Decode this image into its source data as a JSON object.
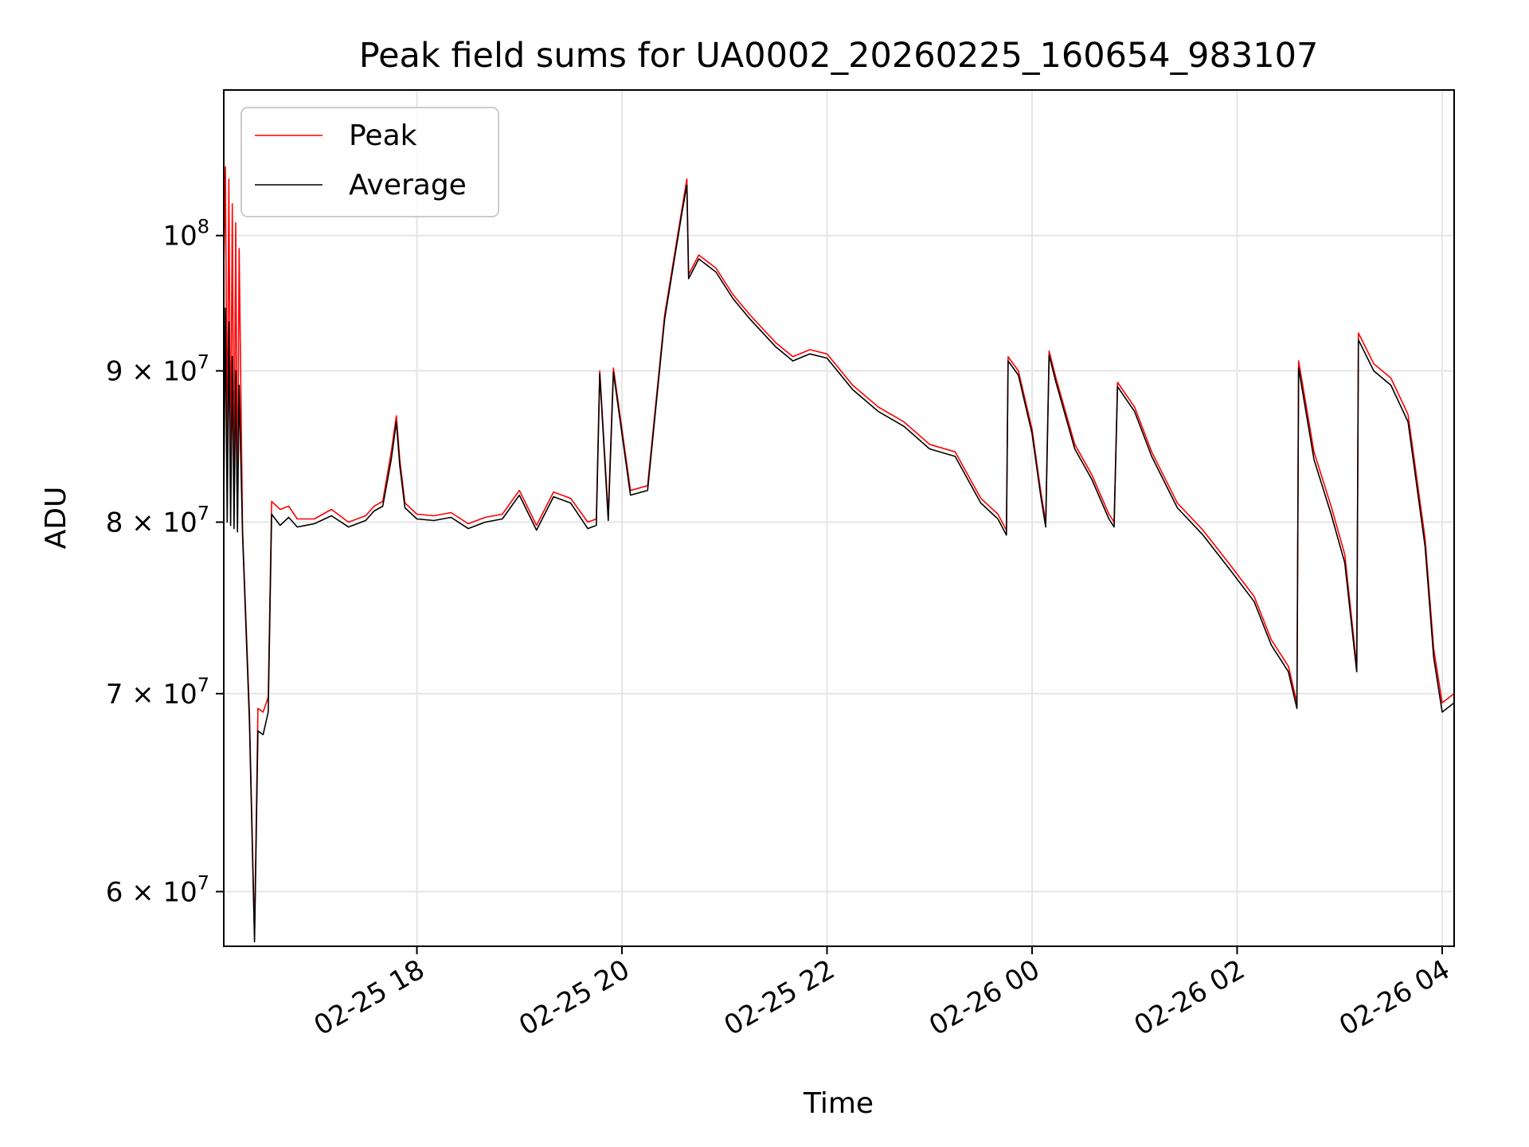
{
  "chart_data": {
    "type": "line",
    "title": "Peak field sums for UA0002_20260225_160654_983107",
    "xlabel": "Time",
    "ylabel": "ADU",
    "yscale": "log",
    "grid": true,
    "legend_position": "top-left",
    "xlim": [
      "2026-02-25 16:07",
      "2026-02-26 04:07"
    ],
    "ylim": [
      57500000,
      112000000
    ],
    "x_ticks": [
      {
        "value": "2026-02-25 18:00",
        "label": "02-25 18"
      },
      {
        "value": "2026-02-25 20:00",
        "label": "02-25 20"
      },
      {
        "value": "2026-02-25 22:00",
        "label": "02-25 22"
      },
      {
        "value": "2026-02-26 00:00",
        "label": "02-26 00"
      },
      {
        "value": "2026-02-26 02:00",
        "label": "02-26 02"
      },
      {
        "value": "2026-02-26 04:00",
        "label": "02-26 04"
      }
    ],
    "y_ticks": [
      {
        "value": 60000000,
        "mantissa": "6",
        "times": "×",
        "base": "10",
        "exp": "7"
      },
      {
        "value": 70000000,
        "mantissa": "7",
        "times": "×",
        "base": "10",
        "exp": "7"
      },
      {
        "value": 80000000,
        "mantissa": "8",
        "times": "×",
        "base": "10",
        "exp": "7"
      },
      {
        "value": 90000000,
        "mantissa": "9",
        "times": "×",
        "base": "10",
        "exp": "7"
      },
      {
        "value": 100000000,
        "mantissa": "",
        "times": "",
        "base": "10",
        "exp": "8"
      }
    ],
    "series": [
      {
        "name": "Peak",
        "color": "#ff0000",
        "points": [
          [
            "2026-02-25 16:07",
            97500000
          ],
          [
            "2026-02-25 16:08",
            105500000
          ],
          [
            "2026-02-25 16:09",
            84000000
          ],
          [
            "2026-02-25 16:10",
            104500000
          ],
          [
            "2026-02-25 16:11",
            83000000
          ],
          [
            "2026-02-25 16:12",
            102500000
          ],
          [
            "2026-02-25 16:13",
            81500000
          ],
          [
            "2026-02-25 16:14",
            101000000
          ],
          [
            "2026-02-25 16:15",
            80500000
          ],
          [
            "2026-02-25 16:16",
            99000000
          ],
          [
            "2026-02-25 16:18",
            79500000
          ],
          [
            "2026-02-25 16:22",
            69000000
          ],
          [
            "2026-02-25 16:25",
            58000000
          ],
          [
            "2026-02-25 16:27",
            69200000
          ],
          [
            "2026-02-25 16:30",
            69000000
          ],
          [
            "2026-02-25 16:33",
            69800000
          ],
          [
            "2026-02-25 16:35",
            81300000
          ],
          [
            "2026-02-25 16:40",
            80800000
          ],
          [
            "2026-02-25 16:45",
            81000000
          ],
          [
            "2026-02-25 16:50",
            80200000
          ],
          [
            "2026-02-25 17:00",
            80200000
          ],
          [
            "2026-02-25 17:10",
            80800000
          ],
          [
            "2026-02-25 17:20",
            80000000
          ],
          [
            "2026-02-25 17:30",
            80400000
          ],
          [
            "2026-02-25 17:35",
            81000000
          ],
          [
            "2026-02-25 17:40",
            81300000
          ],
          [
            "2026-02-25 17:45",
            84500000
          ],
          [
            "2026-02-25 17:48",
            86900000
          ],
          [
            "2026-02-25 17:50",
            84000000
          ],
          [
            "2026-02-25 17:53",
            81200000
          ],
          [
            "2026-02-25 18:00",
            80500000
          ],
          [
            "2026-02-25 18:10",
            80400000
          ],
          [
            "2026-02-25 18:20",
            80600000
          ],
          [
            "2026-02-25 18:30",
            79900000
          ],
          [
            "2026-02-25 18:40",
            80300000
          ],
          [
            "2026-02-25 18:50",
            80500000
          ],
          [
            "2026-02-25 19:00",
            82000000
          ],
          [
            "2026-02-25 19:10",
            79800000
          ],
          [
            "2026-02-25 19:20",
            81900000
          ],
          [
            "2026-02-25 19:30",
            81500000
          ],
          [
            "2026-02-25 19:40",
            80000000
          ],
          [
            "2026-02-25 19:45",
            80200000
          ],
          [
            "2026-02-25 19:47",
            90000000
          ],
          [
            "2026-02-25 19:52",
            80500000
          ],
          [
            "2026-02-25 19:55",
            90200000
          ],
          [
            "2026-02-25 20:05",
            82000000
          ],
          [
            "2026-02-25 20:15",
            82300000
          ],
          [
            "2026-02-25 20:25",
            94000000
          ],
          [
            "2026-02-25 20:35",
            102000000
          ],
          [
            "2026-02-25 20:38",
            104500000
          ],
          [
            "2026-02-25 20:39",
            97000000
          ],
          [
            "2026-02-25 20:45",
            98500000
          ],
          [
            "2026-02-25 20:55",
            97500000
          ],
          [
            "2026-02-25 21:05",
            95500000
          ],
          [
            "2026-02-25 21:15",
            94000000
          ],
          [
            "2026-02-25 21:30",
            92000000
          ],
          [
            "2026-02-25 21:40",
            91000000
          ],
          [
            "2026-02-25 21:50",
            91500000
          ],
          [
            "2026-02-25 22:00",
            91200000
          ],
          [
            "2026-02-25 22:15",
            89000000
          ],
          [
            "2026-02-25 22:30",
            87500000
          ],
          [
            "2026-02-25 22:45",
            86500000
          ],
          [
            "2026-02-25 23:00",
            85000000
          ],
          [
            "2026-02-25 23:15",
            84500000
          ],
          [
            "2026-02-25 23:30",
            81500000
          ],
          [
            "2026-02-25 23:40",
            80500000
          ],
          [
            "2026-02-25 23:45",
            79500000
          ],
          [
            "2026-02-25 23:46",
            91000000
          ],
          [
            "2026-02-25 23:52",
            90000000
          ],
          [
            "2026-02-26 00:00",
            86000000
          ],
          [
            "2026-02-26 00:05",
            82000000
          ],
          [
            "2026-02-26 00:08",
            80000000
          ],
          [
            "2026-02-26 00:10",
            91400000
          ],
          [
            "2026-02-26 00:14",
            89500000
          ],
          [
            "2026-02-26 00:25",
            85000000
          ],
          [
            "2026-02-26 00:35",
            83000000
          ],
          [
            "2026-02-26 00:45",
            80500000
          ],
          [
            "2026-02-26 00:48",
            80000000
          ],
          [
            "2026-02-26 00:50",
            89200000
          ],
          [
            "2026-02-26 01:00",
            87500000
          ],
          [
            "2026-02-26 01:10",
            84500000
          ],
          [
            "2026-02-26 01:25",
            81200000
          ],
          [
            "2026-02-26 01:40",
            79500000
          ],
          [
            "2026-02-26 01:55",
            77500000
          ],
          [
            "2026-02-26 02:10",
            75500000
          ],
          [
            "2026-02-26 02:20",
            73000000
          ],
          [
            "2026-02-26 02:30",
            71500000
          ],
          [
            "2026-02-26 02:35",
            69500000
          ],
          [
            "2026-02-26 02:36",
            90700000
          ],
          [
            "2026-02-26 02:45",
            84500000
          ],
          [
            "2026-02-26 02:55",
            81000000
          ],
          [
            "2026-02-26 03:03",
            78000000
          ],
          [
            "2026-02-26 03:10",
            71500000
          ],
          [
            "2026-02-26 03:11",
            92700000
          ],
          [
            "2026-02-26 03:20",
            90500000
          ],
          [
            "2026-02-26 03:30",
            89500000
          ],
          [
            "2026-02-26 03:40",
            87000000
          ],
          [
            "2026-02-26 03:50",
            79000000
          ],
          [
            "2026-02-26 03:55",
            72500000
          ],
          [
            "2026-02-26 04:00",
            69500000
          ],
          [
            "2026-02-26 04:07",
            70000000
          ]
        ]
      },
      {
        "name": "Average",
        "color": "#000000",
        "points": [
          [
            "2026-02-25 16:07",
            81000000
          ],
          [
            "2026-02-25 16:08",
            94500000
          ],
          [
            "2026-02-25 16:09",
            80000000
          ],
          [
            "2026-02-25 16:10",
            93500000
          ],
          [
            "2026-02-25 16:11",
            79800000
          ],
          [
            "2026-02-25 16:12",
            91000000
          ],
          [
            "2026-02-25 16:13",
            79600000
          ],
          [
            "2026-02-25 16:14",
            90000000
          ],
          [
            "2026-02-25 16:15",
            79400000
          ],
          [
            "2026-02-25 16:16",
            89000000
          ],
          [
            "2026-02-25 16:18",
            79200000
          ],
          [
            "2026-02-25 16:22",
            68500000
          ],
          [
            "2026-02-25 16:25",
            57700000
          ],
          [
            "2026-02-25 16:27",
            68000000
          ],
          [
            "2026-02-25 16:30",
            67800000
          ],
          [
            "2026-02-25 16:33",
            69000000
          ],
          [
            "2026-02-25 16:35",
            80500000
          ],
          [
            "2026-02-25 16:40",
            79800000
          ],
          [
            "2026-02-25 16:45",
            80300000
          ],
          [
            "2026-02-25 16:50",
            79700000
          ],
          [
            "2026-02-25 17:00",
            79900000
          ],
          [
            "2026-02-25 17:10",
            80400000
          ],
          [
            "2026-02-25 17:20",
            79700000
          ],
          [
            "2026-02-25 17:30",
            80100000
          ],
          [
            "2026-02-25 17:35",
            80700000
          ],
          [
            "2026-02-25 17:40",
            81000000
          ],
          [
            "2026-02-25 17:45",
            84000000
          ],
          [
            "2026-02-25 17:48",
            86500000
          ],
          [
            "2026-02-25 17:50",
            83600000
          ],
          [
            "2026-02-25 17:53",
            80900000
          ],
          [
            "2026-02-25 18:00",
            80200000
          ],
          [
            "2026-02-25 18:10",
            80100000
          ],
          [
            "2026-02-25 18:20",
            80300000
          ],
          [
            "2026-02-25 18:30",
            79600000
          ],
          [
            "2026-02-25 18:40",
            80000000
          ],
          [
            "2026-02-25 18:50",
            80200000
          ],
          [
            "2026-02-25 19:00",
            81700000
          ],
          [
            "2026-02-25 19:10",
            79500000
          ],
          [
            "2026-02-25 19:20",
            81600000
          ],
          [
            "2026-02-25 19:30",
            81200000
          ],
          [
            "2026-02-25 19:40",
            79600000
          ],
          [
            "2026-02-25 19:45",
            79800000
          ],
          [
            "2026-02-25 19:47",
            89800000
          ],
          [
            "2026-02-25 19:52",
            80100000
          ],
          [
            "2026-02-25 19:55",
            89900000
          ],
          [
            "2026-02-25 20:05",
            81700000
          ],
          [
            "2026-02-25 20:15",
            82000000
          ],
          [
            "2026-02-25 20:25",
            93700000
          ],
          [
            "2026-02-25 20:35",
            101700000
          ],
          [
            "2026-02-25 20:38",
            104000000
          ],
          [
            "2026-02-25 20:39",
            96700000
          ],
          [
            "2026-02-25 20:45",
            98200000
          ],
          [
            "2026-02-25 20:55",
            97200000
          ],
          [
            "2026-02-25 21:05",
            95200000
          ],
          [
            "2026-02-25 21:15",
            93700000
          ],
          [
            "2026-02-25 21:30",
            91700000
          ],
          [
            "2026-02-25 21:40",
            90700000
          ],
          [
            "2026-02-25 21:50",
            91200000
          ],
          [
            "2026-02-25 22:00",
            90900000
          ],
          [
            "2026-02-25 22:15",
            88700000
          ],
          [
            "2026-02-25 22:30",
            87200000
          ],
          [
            "2026-02-25 22:45",
            86200000
          ],
          [
            "2026-02-25 23:00",
            84700000
          ],
          [
            "2026-02-25 23:15",
            84200000
          ],
          [
            "2026-02-25 23:30",
            81200000
          ],
          [
            "2026-02-25 23:40",
            80200000
          ],
          [
            "2026-02-25 23:45",
            79200000
          ],
          [
            "2026-02-25 23:46",
            90700000
          ],
          [
            "2026-02-25 23:52",
            89700000
          ],
          [
            "2026-02-26 00:00",
            85700000
          ],
          [
            "2026-02-26 00:05",
            81700000
          ],
          [
            "2026-02-26 00:08",
            79700000
          ],
          [
            "2026-02-26 00:10",
            91100000
          ],
          [
            "2026-02-26 00:14",
            89200000
          ],
          [
            "2026-02-26 00:25",
            84700000
          ],
          [
            "2026-02-26 00:35",
            82700000
          ],
          [
            "2026-02-26 00:45",
            80200000
          ],
          [
            "2026-02-26 00:48",
            79700000
          ],
          [
            "2026-02-26 00:50",
            88900000
          ],
          [
            "2026-02-26 01:00",
            87200000
          ],
          [
            "2026-02-26 01:10",
            84200000
          ],
          [
            "2026-02-26 01:25",
            80900000
          ],
          [
            "2026-02-26 01:40",
            79200000
          ],
          [
            "2026-02-26 01:55",
            77200000
          ],
          [
            "2026-02-26 02:10",
            75200000
          ],
          [
            "2026-02-26 02:20",
            72700000
          ],
          [
            "2026-02-26 02:30",
            71200000
          ],
          [
            "2026-02-26 02:35",
            69200000
          ],
          [
            "2026-02-26 02:36",
            90200000
          ],
          [
            "2026-02-26 02:45",
            84000000
          ],
          [
            "2026-02-26 02:55",
            80500000
          ],
          [
            "2026-02-26 03:03",
            77500000
          ],
          [
            "2026-02-26 03:10",
            71200000
          ],
          [
            "2026-02-26 03:11",
            92200000
          ],
          [
            "2026-02-26 03:20",
            90000000
          ],
          [
            "2026-02-26 03:30",
            89000000
          ],
          [
            "2026-02-26 03:40",
            86500000
          ],
          [
            "2026-02-26 03:50",
            78500000
          ],
          [
            "2026-02-26 03:55",
            72000000
          ],
          [
            "2026-02-26 04:00",
            69000000
          ],
          [
            "2026-02-26 04:07",
            69500000
          ]
        ]
      }
    ]
  }
}
